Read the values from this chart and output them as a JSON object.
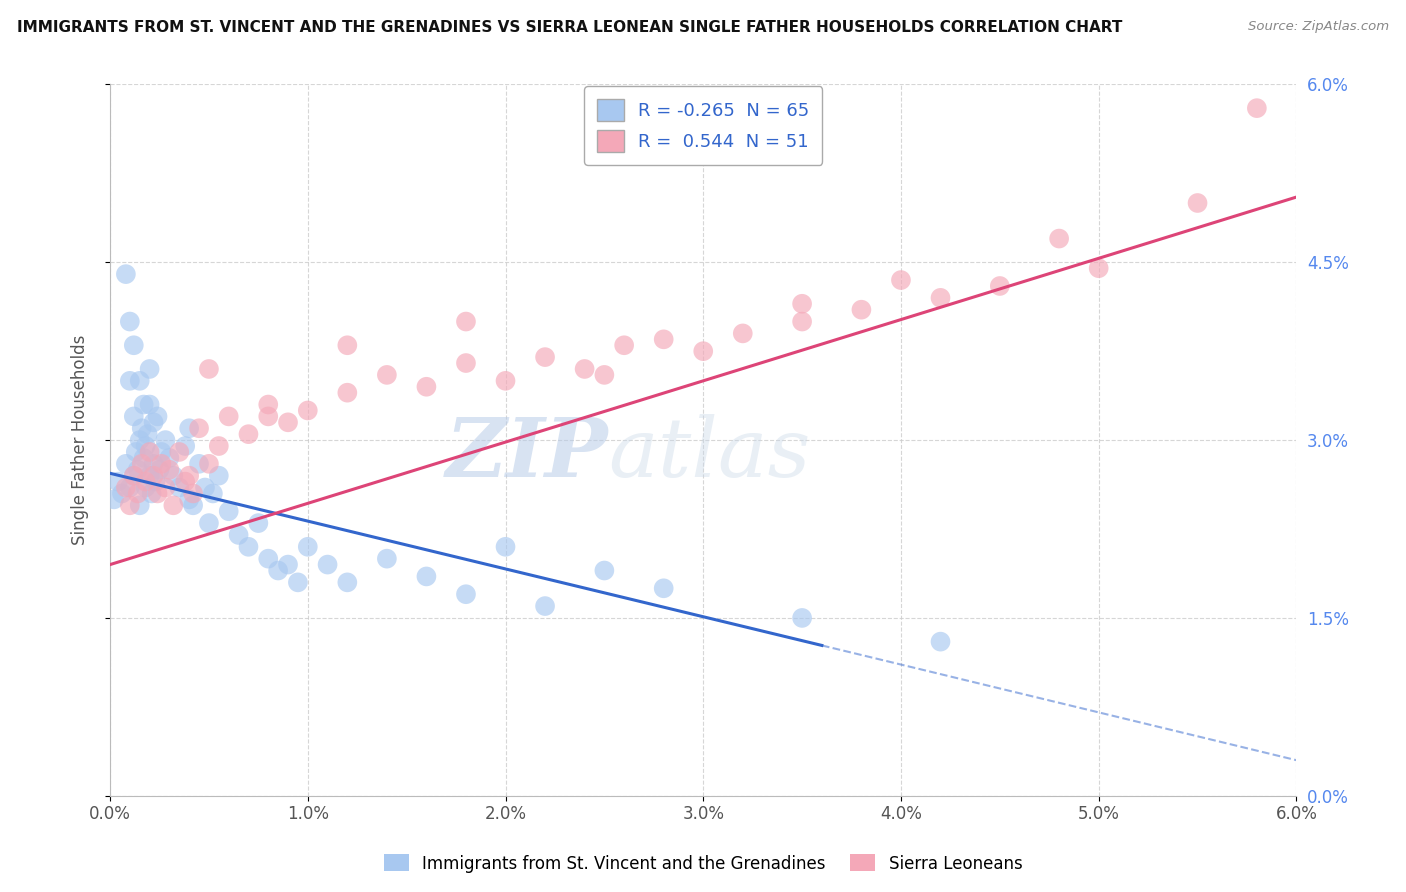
{
  "title": "IMMIGRANTS FROM ST. VINCENT AND THE GRENADINES VS SIERRA LEONEAN SINGLE FATHER HOUSEHOLDS CORRELATION CHART",
  "source": "Source: ZipAtlas.com",
  "ylabel": "Single Father Households",
  "xmin": 0.0,
  "xmax": 6.0,
  "ymin": 0.0,
  "ymax": 6.0,
  "yticks": [
    0.0,
    1.5,
    3.0,
    4.5,
    6.0
  ],
  "xticks": [
    0.0,
    1.0,
    2.0,
    3.0,
    4.0,
    5.0,
    6.0
  ],
  "blue_R": -0.265,
  "blue_N": 65,
  "pink_R": 0.544,
  "pink_N": 51,
  "blue_label": "Immigrants from St. Vincent and the Grenadines",
  "pink_label": "Sierra Leoneans",
  "blue_color": "#a8c8f0",
  "pink_color": "#f4a8b8",
  "blue_line_color": "#3366cc",
  "pink_line_color": "#dd4477",
  "bg_color": "#ffffff",
  "grid_color": "#cccccc",
  "watermark_zip": "ZIP",
  "watermark_atlas": "atlas",
  "blue_line_start_y": 2.72,
  "blue_line_end_x": 6.0,
  "blue_line_end_y": 0.3,
  "blue_solid_end_x": 3.6,
  "pink_line_start_y": 1.95,
  "pink_line_end_x": 6.0,
  "pink_line_end_y": 5.05,
  "blue_scatter_x": [
    0.02,
    0.04,
    0.06,
    0.08,
    0.1,
    0.1,
    0.12,
    0.12,
    0.13,
    0.14,
    0.15,
    0.15,
    0.16,
    0.17,
    0.18,
    0.18,
    0.19,
    0.2,
    0.2,
    0.21,
    0.22,
    0.22,
    0.23,
    0.24,
    0.25,
    0.26,
    0.28,
    0.3,
    0.32,
    0.35,
    0.38,
    0.4,
    0.4,
    0.42,
    0.45,
    0.48,
    0.5,
    0.52,
    0.55,
    0.6,
    0.65,
    0.7,
    0.75,
    0.8,
    0.85,
    0.9,
    0.95,
    1.0,
    1.1,
    1.2,
    1.4,
    1.6,
    1.8,
    2.0,
    2.2,
    2.5,
    2.8,
    0.08,
    0.1,
    0.12,
    0.15,
    0.17,
    0.2,
    3.5,
    4.2
  ],
  "blue_scatter_y": [
    2.5,
    2.65,
    2.55,
    2.8,
    2.6,
    3.5,
    2.7,
    3.2,
    2.9,
    2.75,
    3.0,
    2.45,
    3.1,
    2.85,
    2.95,
    2.6,
    3.05,
    2.7,
    3.3,
    2.55,
    3.15,
    2.8,
    2.65,
    3.2,
    2.75,
    2.9,
    3.0,
    2.85,
    2.7,
    2.6,
    2.95,
    2.5,
    3.1,
    2.45,
    2.8,
    2.6,
    2.3,
    2.55,
    2.7,
    2.4,
    2.2,
    2.1,
    2.3,
    2.0,
    1.9,
    1.95,
    1.8,
    2.1,
    1.95,
    1.8,
    2.0,
    1.85,
    1.7,
    2.1,
    1.6,
    1.9,
    1.75,
    4.4,
    4.0,
    3.8,
    3.5,
    3.3,
    3.6,
    1.5,
    1.3
  ],
  "pink_scatter_x": [
    0.08,
    0.1,
    0.12,
    0.14,
    0.16,
    0.18,
    0.2,
    0.22,
    0.24,
    0.26,
    0.28,
    0.3,
    0.32,
    0.35,
    0.38,
    0.4,
    0.42,
    0.45,
    0.5,
    0.55,
    0.6,
    0.7,
    0.8,
    0.9,
    1.0,
    1.2,
    1.4,
    1.6,
    1.8,
    2.0,
    2.2,
    2.4,
    2.6,
    2.8,
    3.0,
    3.2,
    3.5,
    3.8,
    4.2,
    4.5,
    5.0,
    0.5,
    0.8,
    1.2,
    1.8,
    2.5,
    3.5,
    4.0,
    4.8,
    5.5,
    5.8
  ],
  "pink_scatter_y": [
    2.6,
    2.45,
    2.7,
    2.55,
    2.8,
    2.65,
    2.9,
    2.7,
    2.55,
    2.8,
    2.6,
    2.75,
    2.45,
    2.9,
    2.65,
    2.7,
    2.55,
    3.1,
    2.8,
    2.95,
    3.2,
    3.05,
    3.3,
    3.15,
    3.25,
    3.4,
    3.55,
    3.45,
    3.65,
    3.5,
    3.7,
    3.6,
    3.8,
    3.85,
    3.75,
    3.9,
    4.0,
    4.1,
    4.2,
    4.3,
    4.45,
    3.6,
    3.2,
    3.8,
    4.0,
    3.55,
    4.15,
    4.35,
    4.7,
    5.0,
    5.8
  ]
}
